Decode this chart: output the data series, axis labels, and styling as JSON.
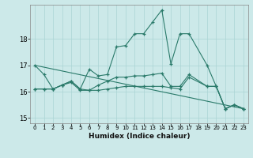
{
  "xlabel": "Humidex (Indice chaleur)",
  "bg_color": "#cce9e9",
  "grid_color": "#aad4d4",
  "line_color": "#2a7a6a",
  "xlim": [
    -0.5,
    23.5
  ],
  "ylim": [
    14.8,
    19.3
  ],
  "yticks": [
    15,
    16,
    17,
    18
  ],
  "xticks": [
    0,
    1,
    2,
    3,
    4,
    5,
    6,
    7,
    8,
    9,
    10,
    11,
    12,
    13,
    14,
    15,
    16,
    17,
    18,
    19,
    20,
    21,
    22,
    23
  ],
  "series": {
    "upper": {
      "x": [
        0,
        1,
        2,
        3,
        4,
        5,
        6,
        7,
        8,
        9,
        10,
        11,
        12,
        13,
        14,
        15,
        16,
        17,
        19,
        20,
        21,
        22,
        23
      ],
      "y": [
        17.0,
        16.65,
        16.1,
        16.25,
        16.4,
        16.1,
        16.85,
        16.6,
        16.65,
        17.7,
        17.75,
        18.2,
        18.2,
        18.65,
        19.1,
        17.05,
        18.2,
        18.2,
        17.0,
        16.2,
        15.35,
        15.5,
        15.35
      ]
    },
    "middle": {
      "x": [
        0,
        1,
        2,
        3,
        4,
        5,
        6,
        7,
        8,
        9,
        10,
        11,
        12,
        13,
        14,
        15,
        16,
        17,
        19,
        20,
        21,
        22,
        23
      ],
      "y": [
        16.1,
        16.1,
        16.1,
        16.25,
        16.4,
        16.1,
        16.05,
        16.25,
        16.4,
        16.55,
        16.55,
        16.6,
        16.6,
        16.65,
        16.7,
        16.2,
        16.2,
        16.65,
        16.2,
        16.2,
        15.35,
        15.5,
        15.35
      ]
    },
    "lower": {
      "x": [
        0,
        1,
        2,
        3,
        4,
        5,
        6,
        7,
        8,
        9,
        10,
        11,
        12,
        13,
        14,
        15,
        16,
        17,
        19,
        20,
        21,
        22,
        23
      ],
      "y": [
        16.1,
        16.1,
        16.1,
        16.25,
        16.35,
        16.05,
        16.05,
        16.05,
        16.1,
        16.15,
        16.2,
        16.2,
        16.2,
        16.2,
        16.2,
        16.15,
        16.1,
        16.55,
        16.2,
        16.2,
        15.35,
        15.5,
        15.35
      ]
    },
    "trend": {
      "x": [
        0,
        23
      ],
      "y": [
        17.0,
        15.35
      ]
    }
  }
}
